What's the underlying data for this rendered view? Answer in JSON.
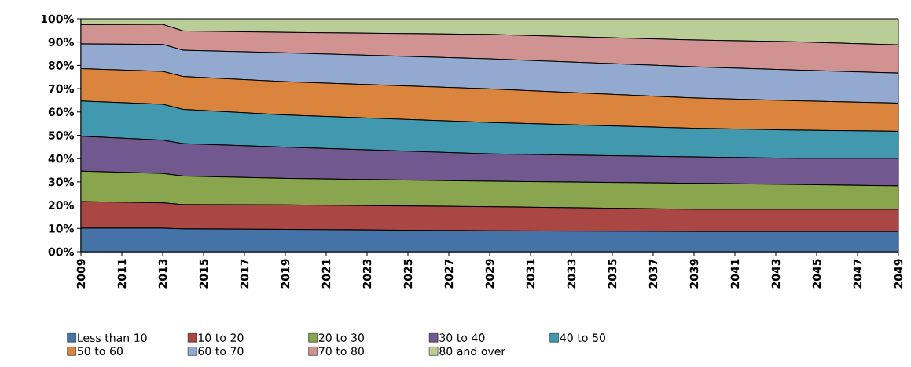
{
  "chart_data": {
    "type": "area",
    "stacked": true,
    "x": [
      2009,
      2013,
      2014,
      2019,
      2029,
      2039,
      2044,
      2049
    ],
    "xlim": [
      2009,
      2049
    ],
    "xticks": [
      2009,
      2011,
      2013,
      2015,
      2017,
      2019,
      2021,
      2023,
      2025,
      2027,
      2029,
      2031,
      2033,
      2035,
      2037,
      2039,
      2041,
      2043,
      2045,
      2047,
      2049
    ],
    "ylim": [
      0,
      100
    ],
    "yticks": [
      {
        "value": 0,
        "label": "00%"
      },
      {
        "value": 10,
        "label": "10%"
      },
      {
        "value": 20,
        "label": "20%"
      },
      {
        "value": 30,
        "label": "30%"
      },
      {
        "value": 40,
        "label": "40%"
      },
      {
        "value": 50,
        "label": "50%"
      },
      {
        "value": 60,
        "label": "60%"
      },
      {
        "value": 70,
        "label": "70%"
      },
      {
        "value": 80,
        "label": "80%"
      },
      {
        "value": 90,
        "label": "90%"
      },
      {
        "value": 100,
        "label": "100%"
      }
    ],
    "legend": "bottom",
    "series": [
      {
        "name": "Less than 10",
        "color": "#4572a7",
        "values": [
          10.1,
          10.1,
          9.8,
          9.6,
          9.0,
          8.7,
          8.7,
          8.7
        ]
      },
      {
        "name": "10 to 20",
        "color": "#aa4643",
        "values": [
          11.4,
          10.9,
          10.4,
          10.5,
          10.3,
          9.5,
          9.5,
          9.5
        ]
      },
      {
        "name": "20 to 30",
        "color": "#89a54e",
        "values": [
          13.1,
          12.6,
          12.3,
          11.4,
          11.0,
          11.2,
          10.7,
          10.1
        ]
      },
      {
        "name": "30 to 40",
        "color": "#71588f",
        "values": [
          15.0,
          14.3,
          13.9,
          13.4,
          11.7,
          11.3,
          11.2,
          11.8
        ]
      },
      {
        "name": "40 to 50",
        "color": "#4198af",
        "values": [
          15.1,
          15.4,
          14.7,
          13.8,
          13.5,
          12.3,
          12.1,
          11.6
        ]
      },
      {
        "name": "50 to 60",
        "color": "#db843d",
        "values": [
          13.9,
          14.1,
          14.1,
          14.3,
          14.4,
          13.0,
          12.6,
          12.1
        ]
      },
      {
        "name": "60 to 70",
        "color": "#93a9cf",
        "values": [
          10.6,
          11.6,
          11.3,
          12.4,
          12.9,
          13.4,
          13.2,
          12.9
        ]
      },
      {
        "name": "70 to 80",
        "color": "#d19392",
        "values": [
          8.3,
          8.6,
          8.3,
          8.8,
          10.5,
          11.5,
          12.1,
          12.1
        ]
      },
      {
        "name": "80 and over",
        "color": "#b9cd96",
        "values": [
          2.5,
          2.4,
          5.2,
          5.8,
          6.7,
          9.1,
          9.9,
          11.2
        ]
      }
    ]
  }
}
